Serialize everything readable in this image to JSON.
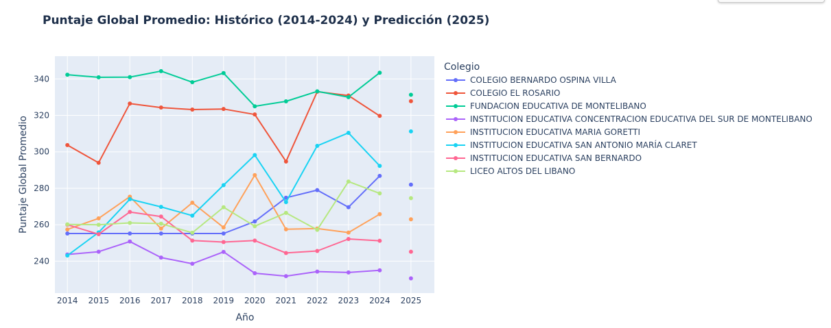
{
  "chart_data": {
    "type": "line",
    "title": "Puntaje Global Promedio: Histórico (2014-2024) y Predicción (2025)",
    "xlabel": "Año",
    "ylabel": "Puntaje Global Promedio",
    "x": [
      2014,
      2015,
      2016,
      2017,
      2018,
      2019,
      2020,
      2021,
      2022,
      2023,
      2024
    ],
    "x_ticks": [
      "2014",
      "2015",
      "2016",
      "2017",
      "2018",
      "2019",
      "2020",
      "2021",
      "2022",
      "2023",
      "2024",
      "2025"
    ],
    "prediction_x": 2025,
    "xlim": [
      2013.6,
      2025.75
    ],
    "ylim": [
      222.5,
      352.5
    ],
    "y_ticks": [
      240,
      260,
      280,
      300,
      320,
      340
    ],
    "grid": true,
    "plot_bgcolor": "#e5ecf6",
    "legend_title": "Colegio",
    "legend_position": "right",
    "series": [
      {
        "name": "COLEGIO BERNARDO OSPINA VILLA",
        "color": "#636efa",
        "values": [
          255.2,
          255.2,
          255.2,
          255.2,
          255.2,
          255.2,
          261.8,
          274.8,
          279.0,
          269.6,
          286.8
        ],
        "prediction": 282.0
      },
      {
        "name": "COLEGIO EL ROSARIO",
        "color": "#ef553b",
        "values": [
          303.7,
          294.0,
          326.5,
          324.3,
          323.2,
          323.5,
          320.5,
          294.7,
          333.0,
          330.9,
          319.7
        ],
        "prediction": 327.8
      },
      {
        "name": "FUNDACION EDUCATIVA DE MONTELIBANO",
        "color": "#00cc96",
        "values": [
          342.3,
          340.9,
          341.0,
          344.3,
          338.2,
          343.2,
          325.0,
          327.7,
          333.2,
          330.0,
          343.4
        ],
        "prediction": 331.3
      },
      {
        "name": "INSTITUCION EDUCATIVA CONCENTRACION EDUCATIVA DEL SUR DE MONTELIBANO",
        "color": "#ab63fa",
        "values": [
          243.7,
          245.2,
          250.8,
          242.0,
          238.6,
          245.1,
          233.4,
          231.8,
          234.3,
          233.8,
          235.0
        ],
        "prediction": 230.6
      },
      {
        "name": "INSTITUCION EDUCATIVA MARIA GORETTI",
        "color": "#ffa15a",
        "values": [
          257.4,
          263.5,
          275.4,
          257.9,
          272.1,
          258.5,
          287.2,
          257.5,
          257.9,
          255.7,
          265.8
        ],
        "prediction": 263.0
      },
      {
        "name": "INSTITUCION EDUCATIVA SAN ANTONIO MARÍA CLARET",
        "color": "#19d3f3",
        "values": [
          243.1,
          255.8,
          274.0,
          269.8,
          265.0,
          281.7,
          298.2,
          272.4,
          303.3,
          310.4,
          292.3
        ],
        "prediction": 311.2
      },
      {
        "name": "INSTITUCION EDUCATIVA SAN BERNARDO",
        "color": "#ff6692",
        "values": [
          260.0,
          254.8,
          267.0,
          264.5,
          251.3,
          250.5,
          251.3,
          244.5,
          245.6,
          252.2,
          251.2
        ],
        "prediction": 245.2
      },
      {
        "name": "LICEO ALTOS DEL LIBANO",
        "color": "#b6e880",
        "values": [
          260.2,
          260.0,
          261.0,
          260.6,
          255.6,
          269.6,
          259.2,
          266.5,
          257.2,
          283.7,
          277.2
        ],
        "prediction": 274.6
      }
    ]
  }
}
